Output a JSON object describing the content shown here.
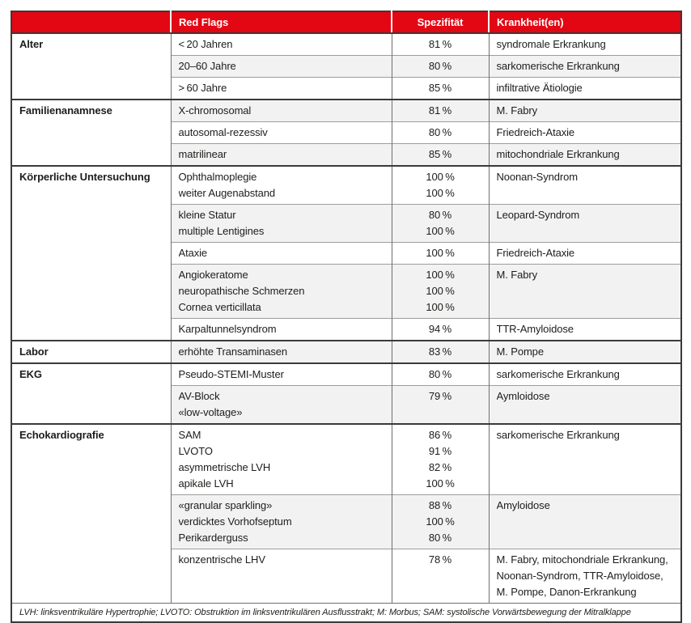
{
  "colors": {
    "header_red": "#e30613",
    "row_alt_gray": "#f2f2f2",
    "border_dark": "#3a3a39",
    "border_mid": "#6f6f6e",
    "border_light": "#9d9d9c",
    "text": "#1d1d1b"
  },
  "table": {
    "headers": {
      "category": "",
      "red_flags": "Red Flags",
      "specificity": "Spezifität",
      "diseases": "Krankheit(en)"
    },
    "groups": [
      {
        "category": "Alter",
        "rows": [
          {
            "flags": [
              "< 20 Jahren"
            ],
            "spec": [
              "81 %"
            ],
            "diseases": [
              "syndromale Erkrankung"
            ]
          },
          {
            "flags": [
              "20–60 Jahre"
            ],
            "spec": [
              "80 %"
            ],
            "diseases": [
              "sarkomerische Erkrankung"
            ]
          },
          {
            "flags": [
              "> 60 Jahre"
            ],
            "spec": [
              "85 %"
            ],
            "diseases": [
              "infiltrative Ätiologie"
            ]
          }
        ]
      },
      {
        "category": "Familienanamnese",
        "rows": [
          {
            "flags": [
              "X-chromosomal"
            ],
            "spec": [
              "81 %"
            ],
            "diseases": [
              "M. Fabry"
            ]
          },
          {
            "flags": [
              "autosomal-rezessiv"
            ],
            "spec": [
              "80 %"
            ],
            "diseases": [
              "Friedreich-Ataxie"
            ]
          },
          {
            "flags": [
              "matrilinear"
            ],
            "spec": [
              "85 %"
            ],
            "diseases": [
              "mitochondriale Erkrankung"
            ]
          }
        ]
      },
      {
        "category": "Körperliche Untersuchung",
        "rows": [
          {
            "flags": [
              "Ophthalmoplegie",
              "weiter Augenabstand"
            ],
            "spec": [
              "100 %",
              "100 %"
            ],
            "diseases": [
              "Noonan-Syndrom"
            ]
          },
          {
            "flags": [
              "kleine Statur",
              "multiple Lentigines"
            ],
            "spec": [
              "80 %",
              "100 %"
            ],
            "diseases": [
              "Leopard-Syndrom"
            ]
          },
          {
            "flags": [
              "Ataxie"
            ],
            "spec": [
              "100 %"
            ],
            "diseases": [
              "Friedreich-Ataxie"
            ]
          },
          {
            "flags": [
              "Angiokeratome",
              "neuropathische Schmerzen",
              "Cornea verticillata"
            ],
            "spec": [
              "100 %",
              "100 %",
              "100 %"
            ],
            "diseases": [
              "M. Fabry"
            ]
          },
          {
            "flags": [
              "Karpaltunnelsyndrom"
            ],
            "spec": [
              "94 %"
            ],
            "diseases": [
              "TTR-Amyloidose"
            ]
          }
        ]
      },
      {
        "category": "Labor",
        "rows": [
          {
            "flags": [
              "erhöhte Transaminasen"
            ],
            "spec": [
              "83 %"
            ],
            "diseases": [
              "M. Pompe"
            ]
          }
        ]
      },
      {
        "category": "EKG",
        "rows": [
          {
            "flags": [
              "Pseudo-STEMI-Muster"
            ],
            "spec": [
              "80 %"
            ],
            "diseases": [
              "sarkomerische Erkrankung"
            ]
          },
          {
            "flags": [
              "AV-Block",
              "«low-voltage»"
            ],
            "spec": [
              "79 %"
            ],
            "diseases": [
              "Aymloidose"
            ]
          }
        ]
      },
      {
        "category": "Echokardiografie",
        "rows": [
          {
            "flags": [
              "SAM",
              "LVOTO",
              "asymmetrische LVH",
              "apikale LVH"
            ],
            "spec": [
              "86 %",
              "91 %",
              "82 %",
              "100 %"
            ],
            "diseases": [
              "sarkomerische Erkrankung"
            ]
          },
          {
            "flags": [
              "«granular sparkling»",
              "verdicktes Vorhofseptum",
              "Perikarderguss"
            ],
            "spec": [
              "88 %",
              "100 %",
              "80 %"
            ],
            "diseases": [
              "Amyloidose"
            ]
          },
          {
            "flags": [
              "konzentrische LHV"
            ],
            "spec": [
              "78 %"
            ],
            "diseases": [
              "M. Fabry, mitochondriale Erkrankung,",
              "Noonan-Syndrom, TTR-Amyloidose,",
              "M. Pompe, Danon-Erkrankung"
            ]
          }
        ]
      }
    ],
    "footnote": "LVH: linksventrikuläre Hypertrophie; LVOTO: Obstruktion im linksventrikulären Ausflusstrakt; M: Morbus; SAM: systolische Vorwärtsbewegung der Mitralklappe"
  }
}
